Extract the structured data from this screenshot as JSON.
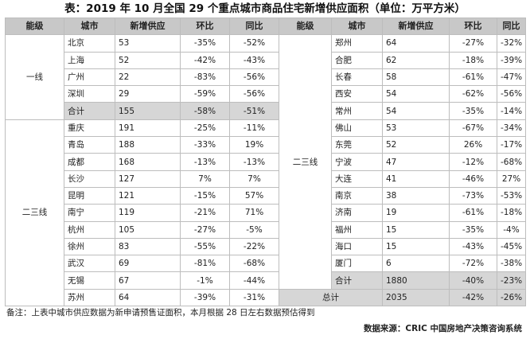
{
  "title": "表：2019 年 10 月全国 29 个重点城市商品住宅新增供应面积（单位：万平方米）",
  "headers": [
    "能级",
    "城市",
    "新增供应",
    "环比",
    "同比",
    "能级",
    "城市",
    "新增供应",
    "环比",
    "同比"
  ],
  "left": {
    "tier1_label": "一线",
    "tier1": [
      {
        "city": "北京",
        "supply": "53",
        "mom": "-35%",
        "yoy": "-52%"
      },
      {
        "city": "上海",
        "supply": "52",
        "mom": "-42%",
        "yoy": "-43%"
      },
      {
        "city": "广州",
        "supply": "22",
        "mom": "-83%",
        "yoy": "-56%"
      },
      {
        "city": "深圳",
        "supply": "29",
        "mom": "-59%",
        "yoy": "-56%"
      }
    ],
    "tier1_total": {
      "city": "合计",
      "supply": "155",
      "mom": "-58%",
      "yoy": "-51%"
    },
    "tier23_label": "二三线",
    "tier23": [
      {
        "city": "重庆",
        "supply": "191",
        "mom": "-25%",
        "yoy": "-11%"
      },
      {
        "city": "青岛",
        "supply": "188",
        "mom": "-33%",
        "yoy": "19%"
      },
      {
        "city": "成都",
        "supply": "168",
        "mom": "-13%",
        "yoy": "-13%"
      },
      {
        "city": "长沙",
        "supply": "127",
        "mom": "7%",
        "yoy": "7%"
      },
      {
        "city": "昆明",
        "supply": "121",
        "mom": "-15%",
        "yoy": "57%"
      },
      {
        "city": "南宁",
        "supply": "119",
        "mom": "-21%",
        "yoy": "71%"
      },
      {
        "city": "杭州",
        "supply": "105",
        "mom": "-27%",
        "yoy": "-5%"
      },
      {
        "city": "徐州",
        "supply": "83",
        "mom": "-55%",
        "yoy": "-22%"
      },
      {
        "city": "武汉",
        "supply": "69",
        "mom": "-81%",
        "yoy": "-68%"
      },
      {
        "city": "无锡",
        "supply": "67",
        "mom": "-1%",
        "yoy": "-44%"
      },
      {
        "city": "苏州",
        "supply": "64",
        "mom": "-39%",
        "yoy": "-31%"
      }
    ]
  },
  "right": {
    "tier23_label": "二三线",
    "rows": [
      {
        "city": "郑州",
        "supply": "64",
        "mom": "-27%",
        "yoy": "-32%"
      },
      {
        "city": "合肥",
        "supply": "62",
        "mom": "-18%",
        "yoy": "-39%"
      },
      {
        "city": "长春",
        "supply": "58",
        "mom": "-61%",
        "yoy": "-47%"
      },
      {
        "city": "西安",
        "supply": "54",
        "mom": "-62%",
        "yoy": "-56%"
      },
      {
        "city": "常州",
        "supply": "54",
        "mom": "-35%",
        "yoy": "-14%"
      },
      {
        "city": "佛山",
        "supply": "53",
        "mom": "-67%",
        "yoy": "-34%"
      },
      {
        "city": "东莞",
        "supply": "52",
        "mom": "26%",
        "yoy": "-17%"
      },
      {
        "city": "宁波",
        "supply": "47",
        "mom": "-12%",
        "yoy": "-68%"
      },
      {
        "city": "大连",
        "supply": "41",
        "mom": "-46%",
        "yoy": "27%"
      },
      {
        "city": "南京",
        "supply": "38",
        "mom": "-73%",
        "yoy": "-53%"
      },
      {
        "city": "济南",
        "supply": "19",
        "mom": "-61%",
        "yoy": "-18%"
      },
      {
        "city": "福州",
        "supply": "15",
        "mom": "-35%",
        "yoy": "-4%"
      },
      {
        "city": "海口",
        "supply": "15",
        "mom": "-43%",
        "yoy": "-45%"
      },
      {
        "city": "厦门",
        "supply": "6",
        "mom": "-72%",
        "yoy": "-38%"
      }
    ],
    "tier23_total": {
      "city": "合计",
      "supply": "1880",
      "mom": "-40%",
      "yoy": "-23%"
    },
    "grand_total": {
      "label": "总计",
      "supply": "2035",
      "mom": "-42%",
      "yoy": "-26%"
    }
  },
  "note": "备注：上表中城市供应数据为新申请预售证面积，本月根据 28 日左右数据预估得到",
  "source": "数据来源：CRIC 中国房地产决策咨询系统"
}
